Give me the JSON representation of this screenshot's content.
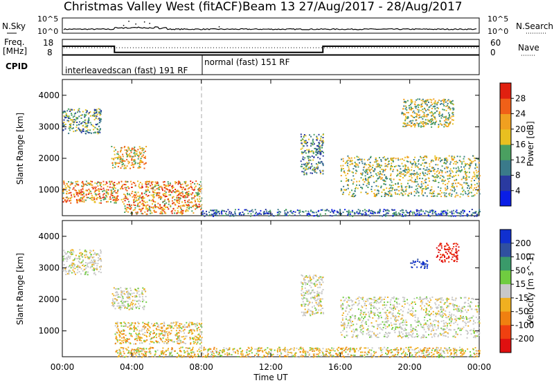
{
  "header": {
    "station": "Christmas Valley West (fitACF)",
    "beam": "Beam 13 27/Aug/2017 - 28/Aug/2017"
  },
  "top_panel": {
    "nsky_label": "N.Sky",
    "nsearch_label": "N.Search",
    "left_ticks": [
      "10^5",
      "10^0"
    ],
    "right_ticks": [
      "10^5",
      "10^0"
    ]
  },
  "freq_panel": {
    "freq_label_line1": "Freq.",
    "freq_label_line2": "[MHz]",
    "nave_label": "Nave",
    "left_ticks": [
      "18",
      "8"
    ],
    "right_ticks": [
      "60",
      "0"
    ]
  },
  "cpid_panel": {
    "label": "CPID",
    "mode1": "interleavedscan (fast) 191 RF",
    "mode2": "normal (fast) 151 RF"
  },
  "x_axis": {
    "label": "Time UT",
    "ticks": [
      "00:00",
      "04:00",
      "08:00",
      "12:00",
      "16:00",
      "20:00",
      "00:00"
    ]
  },
  "power_panel": {
    "ylabel": "Slant Range [km]",
    "yticks": [
      "1000",
      "2000",
      "3000",
      "4000"
    ],
    "colorbar_label": "Power [dB]",
    "colorbar_ticks": [
      "4",
      "8",
      "12",
      "16",
      "20",
      "24",
      "28"
    ],
    "colors": [
      "#0a1ee6",
      "#2a3aa0",
      "#3a7a8a",
      "#4aa060",
      "#e8c020",
      "#f0a020",
      "#f06018",
      "#e02010"
    ]
  },
  "velocity_panel": {
    "ylabel": "Slant Range [km]",
    "yticks": [
      "1000",
      "2000",
      "3000",
      "4000"
    ],
    "colorbar_label": "Velocity [m s^-1]",
    "colorbar_ticks": [
      "200",
      "100",
      "50",
      "15",
      "-15",
      "-50",
      "-100",
      "-200"
    ],
    "colors": [
      "#1030d0",
      "#3050a0",
      "#3a9a6a",
      "#70cc40",
      "#c8c8c8",
      "#f0b020",
      "#f08010",
      "#f04010",
      "#e01010"
    ]
  },
  "chart_data": {
    "type": "heatmap",
    "x_range_hours": [
      0,
      24
    ],
    "y_range_km": [
      180,
      4500
    ],
    "mode_change_time": "08:00",
    "freq_levels_mhz": [
      {
        "from": "00:00",
        "to": "03:00",
        "value": 13.5
      },
      {
        "from": "03:00",
        "to": "15:00",
        "value": 9.5
      },
      {
        "from": "15:00",
        "to": "24:00",
        "value": 13.5
      }
    ],
    "power_regions": [
      {
        "t": [
          0.0,
          2.2
        ],
        "r": [
          2800,
          3600
        ],
        "level": "low-mid"
      },
      {
        "t": [
          2.8,
          4.8
        ],
        "r": [
          1700,
          2400
        ],
        "level": "mid-high"
      },
      {
        "t": [
          0.0,
          8.0
        ],
        "r": [
          600,
          1300
        ],
        "level": "high"
      },
      {
        "t": [
          3.5,
          8.0
        ],
        "r": [
          250,
          600
        ],
        "level": "high"
      },
      {
        "t": [
          8.0,
          24.0
        ],
        "r": [
          180,
          400
        ],
        "level": "low"
      },
      {
        "t": [
          13.7,
          15.0
        ],
        "r": [
          1500,
          2800
        ],
        "level": "low-mid"
      },
      {
        "t": [
          16.0,
          24.0
        ],
        "r": [
          800,
          2100
        ],
        "level": "mid"
      },
      {
        "t": [
          19.5,
          22.5
        ],
        "r": [
          3000,
          3900
        ],
        "level": "mid"
      }
    ],
    "velocity_regions": [
      {
        "t": [
          0.0,
          2.2
        ],
        "r": [
          2800,
          3600
        ],
        "level": "near-zero"
      },
      {
        "t": [
          2.8,
          4.8
        ],
        "r": [
          1700,
          2400
        ],
        "level": "near-zero"
      },
      {
        "t": [
          3.0,
          8.0
        ],
        "r": [
          600,
          1300
        ],
        "level": "-15 to -50"
      },
      {
        "t": [
          3.0,
          24.0
        ],
        "r": [
          180,
          500
        ],
        "level": "-15 to -50"
      },
      {
        "t": [
          13.7,
          15.0
        ],
        "r": [
          1500,
          2800
        ],
        "level": "near-zero"
      },
      {
        "t": [
          16.0,
          24.0
        ],
        "r": [
          800,
          2100
        ],
        "level": "near-zero"
      },
      {
        "t": [
          20.0,
          21.0
        ],
        "r": [
          3000,
          3300
        ],
        "level": "200"
      },
      {
        "t": [
          21.5,
          22.8
        ],
        "r": [
          3200,
          3800
        ],
        "level": "-200"
      }
    ]
  }
}
